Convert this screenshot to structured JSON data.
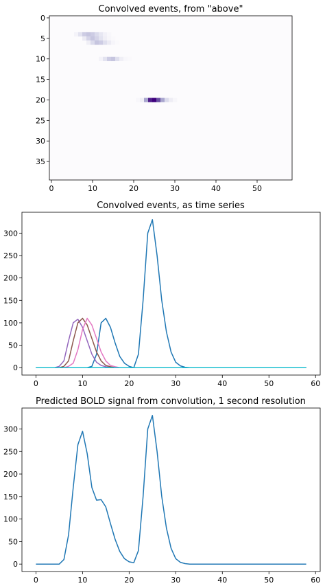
{
  "chart_data": [
    {
      "type": "heatmap",
      "title": "Convolved events, from \"above\"",
      "xlim": [
        -0.5,
        58.5
      ],
      "ylim": [
        39.5,
        -0.5
      ],
      "xticks": [
        0,
        10,
        20,
        30,
        40,
        50
      ],
      "yticks": [
        0,
        5,
        10,
        15,
        20,
        25,
        30,
        35
      ],
      "colormap": "Purples",
      "vmax": 330,
      "cells": [
        {
          "row": 4,
          "x": [
            6,
            7,
            8,
            9,
            10,
            11,
            12,
            13,
            14
          ],
          "values": [
            20,
            60,
            100,
            110,
            100,
            80,
            50,
            25,
            10
          ]
        },
        {
          "row": 5,
          "x": [
            8,
            9,
            10,
            11,
            12,
            13,
            14,
            15
          ],
          "values": [
            40,
            90,
            108,
            90,
            60,
            30,
            12,
            5
          ]
        },
        {
          "row": 6,
          "x": [
            9,
            10,
            11,
            12,
            13,
            14,
            15,
            16
          ],
          "values": [
            30,
            80,
            110,
            100,
            70,
            40,
            15,
            5
          ]
        },
        {
          "row": 10,
          "x": [
            12,
            13,
            14,
            15,
            16,
            17,
            18,
            19
          ],
          "values": [
            20,
            60,
            100,
            110,
            70,
            30,
            10,
            4
          ]
        },
        {
          "row": 20,
          "x": [
            21,
            22,
            23,
            24,
            25,
            26,
            27,
            28,
            29,
            30
          ],
          "values": [
            10,
            30,
            150,
            300,
            330,
            250,
            150,
            80,
            35,
            12
          ]
        }
      ]
    },
    {
      "type": "line",
      "title": "Convolved events, as time series",
      "xlim": [
        -3,
        61
      ],
      "ylim": [
        -16.5,
        346.5
      ],
      "xticks": [
        0,
        10,
        20,
        30,
        40,
        50,
        60
      ],
      "yticks": [
        0,
        50,
        100,
        150,
        200,
        250,
        300
      ],
      "series": [
        {
          "color": "#1f77b4",
          "x": [
            0,
            11,
            12,
            13,
            14,
            15,
            16,
            17,
            18,
            19,
            20,
            21,
            58
          ],
          "y": [
            0,
            0,
            3,
            30,
            100,
            110,
            90,
            55,
            25,
            10,
            3,
            0,
            0
          ]
        },
        {
          "color": "#9467bd",
          "x": [
            0,
            4,
            5,
            6,
            7,
            8,
            9,
            10,
            11,
            12,
            13,
            14,
            15,
            16,
            58
          ],
          "y": [
            0,
            0,
            3,
            15,
            60,
            100,
            108,
            90,
            60,
            30,
            12,
            5,
            2,
            0,
            0
          ]
        },
        {
          "color": "#8c564b",
          "x": [
            0,
            5,
            6,
            7,
            8,
            9,
            10,
            11,
            12,
            13,
            14,
            15,
            16,
            17,
            58
          ],
          "y": [
            0,
            0,
            3,
            15,
            60,
            100,
            110,
            95,
            65,
            35,
            15,
            5,
            2,
            0,
            0
          ]
        },
        {
          "color": "#e377c2",
          "x": [
            0,
            6,
            7,
            8,
            9,
            10,
            11,
            12,
            13,
            14,
            15,
            16,
            17,
            18,
            58
          ],
          "y": [
            0,
            0,
            3,
            10,
            40,
            85,
            110,
            95,
            65,
            35,
            15,
            5,
            2,
            0,
            0
          ]
        },
        {
          "color": "#1f77b4",
          "x": [
            0,
            21,
            22,
            23,
            24,
            25,
            26,
            27,
            28,
            29,
            30,
            31,
            32,
            33,
            58
          ],
          "y": [
            0,
            0,
            30,
            150,
            300,
            330,
            250,
            150,
            80,
            35,
            12,
            4,
            1,
            0,
            0
          ]
        },
        {
          "color": "#17becf",
          "x": [
            0,
            58
          ],
          "y": [
            0,
            0
          ]
        }
      ]
    },
    {
      "type": "line",
      "title": "Predicted BOLD signal from convolution, 1 second resolution",
      "xlim": [
        -3,
        61
      ],
      "ylim": [
        -16.5,
        346.5
      ],
      "xticks": [
        0,
        10,
        20,
        30,
        40,
        50,
        60
      ],
      "yticks": [
        0,
        50,
        100,
        150,
        200,
        250,
        300
      ],
      "series": [
        {
          "color": "#1f77b4",
          "x": [
            0,
            1,
            2,
            3,
            4,
            5,
            6,
            7,
            8,
            9,
            10,
            11,
            12,
            13,
            14,
            15,
            16,
            17,
            18,
            19,
            20,
            21,
            22,
            23,
            24,
            25,
            26,
            27,
            28,
            29,
            30,
            31,
            32,
            33,
            34,
            35,
            40,
            45,
            50,
            55,
            58
          ],
          "y": [
            0,
            0,
            0,
            0,
            0,
            0,
            10,
            65,
            170,
            265,
            295,
            245,
            170,
            142,
            143,
            127,
            90,
            55,
            28,
            12,
            5,
            3,
            30,
            150,
            300,
            330,
            250,
            150,
            80,
            35,
            12,
            4,
            1,
            0,
            0,
            0,
            0,
            0,
            0,
            0,
            0
          ]
        }
      ]
    }
  ]
}
